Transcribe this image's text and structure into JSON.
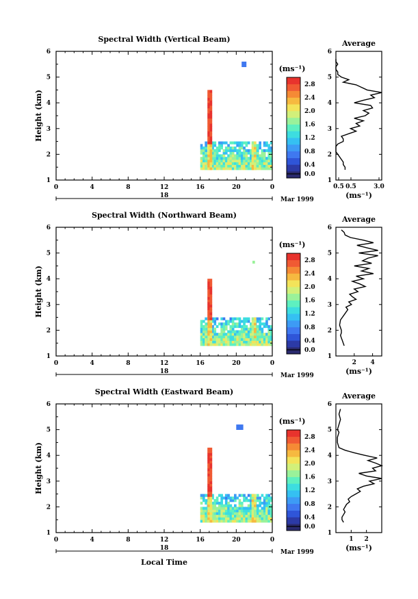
{
  "figure": {
    "date_label": "Mar 1999",
    "day_label": "18",
    "xlabel": "Local Time"
  },
  "chart_data": [
    {
      "type": "heatmap",
      "title": "Spectral Width (Vertical Beam)",
      "ylabel": "Height (km)",
      "x_ticks": [
        "0",
        "4",
        "8",
        "12",
        "16",
        "20",
        "0"
      ],
      "y_ticks": [
        "1",
        "2",
        "3",
        "4",
        "5",
        "6"
      ],
      "xlim": [
        0,
        24
      ],
      "ylim": [
        1,
        6
      ],
      "colorbar": {
        "unit_label": "(ms⁻¹)",
        "ticks": [
          "2.8",
          "2.4",
          "2.0",
          "1.6",
          "1.2",
          "0.8",
          "0.4",
          "0.0"
        ],
        "range": [
          0,
          3.0
        ]
      },
      "regions": [
        {
          "x": [
            16.0,
            24.0
          ],
          "y": [
            1.4,
            2.5
          ],
          "level": "low-mixed"
        },
        {
          "x": [
            16.8,
            17.3
          ],
          "y": [
            1.4,
            4.5
          ],
          "level": "high"
        },
        {
          "x": [
            21.7,
            22.2
          ],
          "y": [
            1.4,
            2.5
          ],
          "level": "mid"
        },
        {
          "x": [
            20.6,
            20.9
          ],
          "y": [
            5.4,
            5.6
          ],
          "level": "low"
        }
      ],
      "profile": {
        "title": "Average",
        "xlabel": "(ms⁻¹)",
        "x_ticks": [
          "0.5",
          "0.5",
          "3.0"
        ],
        "y_ticks": [
          "1",
          "2",
          "3",
          "4",
          "5",
          "6"
        ],
        "xlim": [
          0.5,
          3.0
        ],
        "ylim": [
          1,
          6
        ],
        "points": [
          [
            1.0,
            1.4
          ],
          [
            1.0,
            1.5
          ],
          [
            0.9,
            1.6
          ],
          [
            0.9,
            1.7
          ],
          [
            0.8,
            1.8
          ],
          [
            0.7,
            1.9
          ],
          [
            0.6,
            2.0
          ],
          [
            0.5,
            2.1
          ],
          [
            0.5,
            2.2
          ],
          [
            0.5,
            2.3
          ],
          [
            0.6,
            2.4
          ],
          [
            0.9,
            2.5
          ],
          [
            0.9,
            2.6
          ],
          [
            0.8,
            2.7
          ],
          [
            1.2,
            2.8
          ],
          [
            1.6,
            2.9
          ],
          [
            1.3,
            3.0
          ],
          [
            1.8,
            3.1
          ],
          [
            1.6,
            3.2
          ],
          [
            2.0,
            3.3
          ],
          [
            1.5,
            3.4
          ],
          [
            2.1,
            3.5
          ],
          [
            2.3,
            3.6
          ],
          [
            2.0,
            3.7
          ],
          [
            2.5,
            3.8
          ],
          [
            2.4,
            3.9
          ],
          [
            1.5,
            4.0
          ],
          [
            2.0,
            4.1
          ],
          [
            2.6,
            4.2
          ],
          [
            2.4,
            4.3
          ],
          [
            3.0,
            4.4
          ],
          [
            2.2,
            4.5
          ],
          [
            1.9,
            4.6
          ],
          [
            1.6,
            4.7
          ],
          [
            0.9,
            4.8
          ],
          [
            1.2,
            4.9
          ],
          [
            0.8,
            5.0
          ],
          [
            0.6,
            5.1
          ],
          [
            0.6,
            5.2
          ],
          [
            0.5,
            5.3
          ],
          [
            0.5,
            5.4
          ],
          [
            0.6,
            5.5
          ],
          [
            0.5,
            5.6
          ],
          [
            0.5,
            5.7
          ]
        ]
      }
    },
    {
      "type": "heatmap",
      "title": "Spectral Width (Northward Beam)",
      "ylabel": "Height (km)",
      "x_ticks": [
        "0",
        "4",
        "8",
        "12",
        "16",
        "20",
        "0"
      ],
      "y_ticks": [
        "1",
        "2",
        "3",
        "4",
        "5",
        "6"
      ],
      "xlim": [
        0,
        24
      ],
      "ylim": [
        1,
        6
      ],
      "colorbar": {
        "unit_label": "(ms⁻¹)",
        "ticks": [
          "2.8",
          "2.4",
          "2.0",
          "1.6",
          "1.2",
          "0.8",
          "0.4",
          "0.0"
        ],
        "range": [
          0,
          3.0
        ]
      },
      "regions": [
        {
          "x": [
            16.0,
            24.0
          ],
          "y": [
            1.4,
            2.5
          ],
          "level": "low-mixed"
        },
        {
          "x": [
            16.8,
            17.3
          ],
          "y": [
            1.4,
            4.0
          ],
          "level": "high"
        },
        {
          "x": [
            21.7,
            22.2
          ],
          "y": [
            1.4,
            2.5
          ],
          "level": "mid"
        },
        {
          "x": [
            21.8,
            21.9
          ],
          "y": [
            4.6,
            4.7
          ],
          "level": "mid"
        }
      ],
      "profile": {
        "title": "Average",
        "xlabel": "(ms⁻¹)",
        "x_ticks": [
          "2",
          "4"
        ],
        "y_ticks": [
          "1",
          "2",
          "3",
          "4",
          "5",
          "6"
        ],
        "xlim": [
          0,
          5
        ],
        "ylim": [
          1,
          6
        ],
        "points": [
          [
            0.9,
            1.4
          ],
          [
            0.8,
            1.5
          ],
          [
            0.7,
            1.6
          ],
          [
            0.6,
            1.7
          ],
          [
            0.5,
            1.8
          ],
          [
            0.6,
            1.9
          ],
          [
            0.6,
            2.0
          ],
          [
            0.4,
            2.2
          ],
          [
            0.5,
            2.4
          ],
          [
            0.9,
            2.6
          ],
          [
            1.3,
            2.8
          ],
          [
            1.1,
            2.9
          ],
          [
            1.7,
            3.0
          ],
          [
            1.4,
            3.1
          ],
          [
            2.2,
            3.2
          ],
          [
            1.8,
            3.3
          ],
          [
            1.5,
            3.4
          ],
          [
            2.4,
            3.5
          ],
          [
            2.0,
            3.6
          ],
          [
            3.2,
            3.7
          ],
          [
            2.6,
            3.8
          ],
          [
            1.8,
            3.9
          ],
          [
            3.0,
            4.0
          ],
          [
            2.2,
            4.1
          ],
          [
            4.1,
            4.2
          ],
          [
            2.8,
            4.3
          ],
          [
            3.6,
            4.4
          ],
          [
            2.0,
            4.5
          ],
          [
            3.9,
            4.6
          ],
          [
            2.9,
            4.7
          ],
          [
            3.5,
            4.8
          ],
          [
            4.6,
            4.9
          ],
          [
            2.5,
            5.0
          ],
          [
            4.6,
            5.1
          ],
          [
            3.4,
            5.2
          ],
          [
            2.3,
            5.3
          ],
          [
            4.1,
            5.4
          ],
          [
            3.0,
            5.5
          ],
          [
            1.6,
            5.6
          ],
          [
            1.0,
            5.7
          ],
          [
            0.9,
            5.8
          ],
          [
            0.6,
            5.9
          ]
        ]
      }
    },
    {
      "type": "heatmap",
      "title": "Spectral Width (Eastward Beam)",
      "ylabel": "Height (km)",
      "x_ticks": [
        "0",
        "4",
        "8",
        "12",
        "16",
        "20",
        "0"
      ],
      "y_ticks": [
        "1",
        "2",
        "3",
        "4",
        "5",
        "6"
      ],
      "xlim": [
        0,
        24
      ],
      "ylim": [
        1,
        6
      ],
      "colorbar": {
        "unit_label": "(ms⁻¹)",
        "ticks": [
          "2.8",
          "2.4",
          "2.0",
          "1.6",
          "1.2",
          "0.8",
          "0.4",
          "0.0"
        ],
        "range": [
          0,
          3.0
        ]
      },
      "regions": [
        {
          "x": [
            16.0,
            24.0
          ],
          "y": [
            1.4,
            2.5
          ],
          "level": "low-mixed"
        },
        {
          "x": [
            16.8,
            17.3
          ],
          "y": [
            1.4,
            4.3
          ],
          "level": "high"
        },
        {
          "x": [
            21.7,
            22.2
          ],
          "y": [
            1.4,
            2.5
          ],
          "level": "mid"
        },
        {
          "x": [
            20.0,
            20.6
          ],
          "y": [
            5.0,
            5.2
          ],
          "level": "low"
        }
      ],
      "profile": {
        "title": "Average",
        "xlabel": "(ms⁻¹)",
        "x_ticks": [
          "1",
          "2"
        ],
        "y_ticks": [
          "1",
          "2",
          "3",
          "4",
          "5",
          "6"
        ],
        "xlim": [
          0,
          3
        ],
        "ylim": [
          1,
          6
        ],
        "points": [
          [
            0.5,
            1.4
          ],
          [
            0.4,
            1.5
          ],
          [
            0.4,
            1.6
          ],
          [
            0.5,
            1.7
          ],
          [
            0.6,
            1.8
          ],
          [
            0.5,
            1.9
          ],
          [
            0.6,
            2.0
          ],
          [
            0.7,
            2.1
          ],
          [
            0.9,
            2.2
          ],
          [
            0.8,
            2.3
          ],
          [
            1.0,
            2.4
          ],
          [
            1.3,
            2.5
          ],
          [
            1.6,
            2.6
          ],
          [
            1.4,
            2.7
          ],
          [
            1.8,
            2.8
          ],
          [
            2.5,
            2.9
          ],
          [
            2.2,
            3.0
          ],
          [
            3.0,
            3.1
          ],
          [
            2.0,
            3.2
          ],
          [
            1.5,
            3.3
          ],
          [
            2.6,
            3.4
          ],
          [
            2.4,
            3.5
          ],
          [
            3.0,
            3.6
          ],
          [
            2.6,
            3.7
          ],
          [
            2.1,
            3.8
          ],
          [
            2.7,
            3.9
          ],
          [
            1.9,
            4.0
          ],
          [
            1.2,
            4.1
          ],
          [
            0.6,
            4.2
          ],
          [
            0.2,
            4.3
          ],
          [
            0.1,
            4.5
          ],
          [
            0.1,
            4.7
          ],
          [
            0.2,
            4.9
          ],
          [
            0.1,
            5.0
          ],
          [
            0.2,
            5.2
          ],
          [
            0.3,
            5.4
          ],
          [
            0.2,
            5.6
          ],
          [
            0.3,
            5.8
          ]
        ]
      }
    }
  ]
}
